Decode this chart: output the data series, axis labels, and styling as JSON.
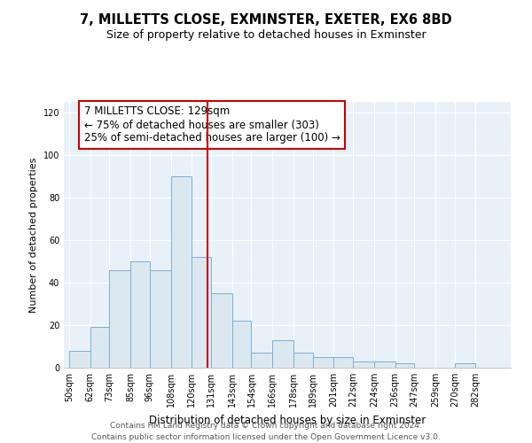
{
  "title": "7, MILLETTS CLOSE, EXMINSTER, EXETER, EX6 8BD",
  "subtitle": "Size of property relative to detached houses in Exminster",
  "xlabel": "Distribution of detached houses by size in Exminster",
  "ylabel": "Number of detached properties",
  "bin_labels": [
    "50sqm",
    "62sqm",
    "73sqm",
    "85sqm",
    "96sqm",
    "108sqm",
    "120sqm",
    "131sqm",
    "143sqm",
    "154sqm",
    "166sqm",
    "178sqm",
    "189sqm",
    "201sqm",
    "212sqm",
    "224sqm",
    "236sqm",
    "247sqm",
    "259sqm",
    "270sqm",
    "282sqm"
  ],
  "bin_edges": [
    50,
    62,
    73,
    85,
    96,
    108,
    120,
    131,
    143,
    154,
    166,
    178,
    189,
    201,
    212,
    224,
    236,
    247,
    259,
    270,
    282,
    294
  ],
  "bar_heights": [
    8,
    19,
    46,
    50,
    46,
    90,
    52,
    35,
    22,
    7,
    13,
    7,
    5,
    5,
    3,
    3,
    2,
    0,
    0,
    2,
    0
  ],
  "bar_color": "#dce8f0",
  "bar_edge_color": "#7ab0d4",
  "reference_line_x": 129,
  "reference_line_color": "#cc0000",
  "annotation_title": "7 MILLETTS CLOSE: 129sqm",
  "annotation_line1": "← 75% of detached houses are smaller (303)",
  "annotation_line2": "25% of semi-detached houses are larger (100) →",
  "annotation_box_facecolor": "#ffffff",
  "annotation_box_edgecolor": "#cc0000",
  "ylim": [
    0,
    125
  ],
  "yticks": [
    0,
    20,
    40,
    60,
    80,
    100,
    120
  ],
  "footer_line1": "Contains HM Land Registry data © Crown copyright and database right 2024.",
  "footer_line2": "Contains public sector information licensed under the Open Government Licence v3.0.",
  "background_color": "#ffffff",
  "plot_background": "#e8f0f8",
  "grid_color": "#ffffff",
  "title_fontsize": 10.5,
  "subtitle_fontsize": 9,
  "xlabel_fontsize": 8.5,
  "ylabel_fontsize": 8,
  "tick_fontsize": 7,
  "footer_fontsize": 6.5,
  "annotation_fontsize": 8.5
}
